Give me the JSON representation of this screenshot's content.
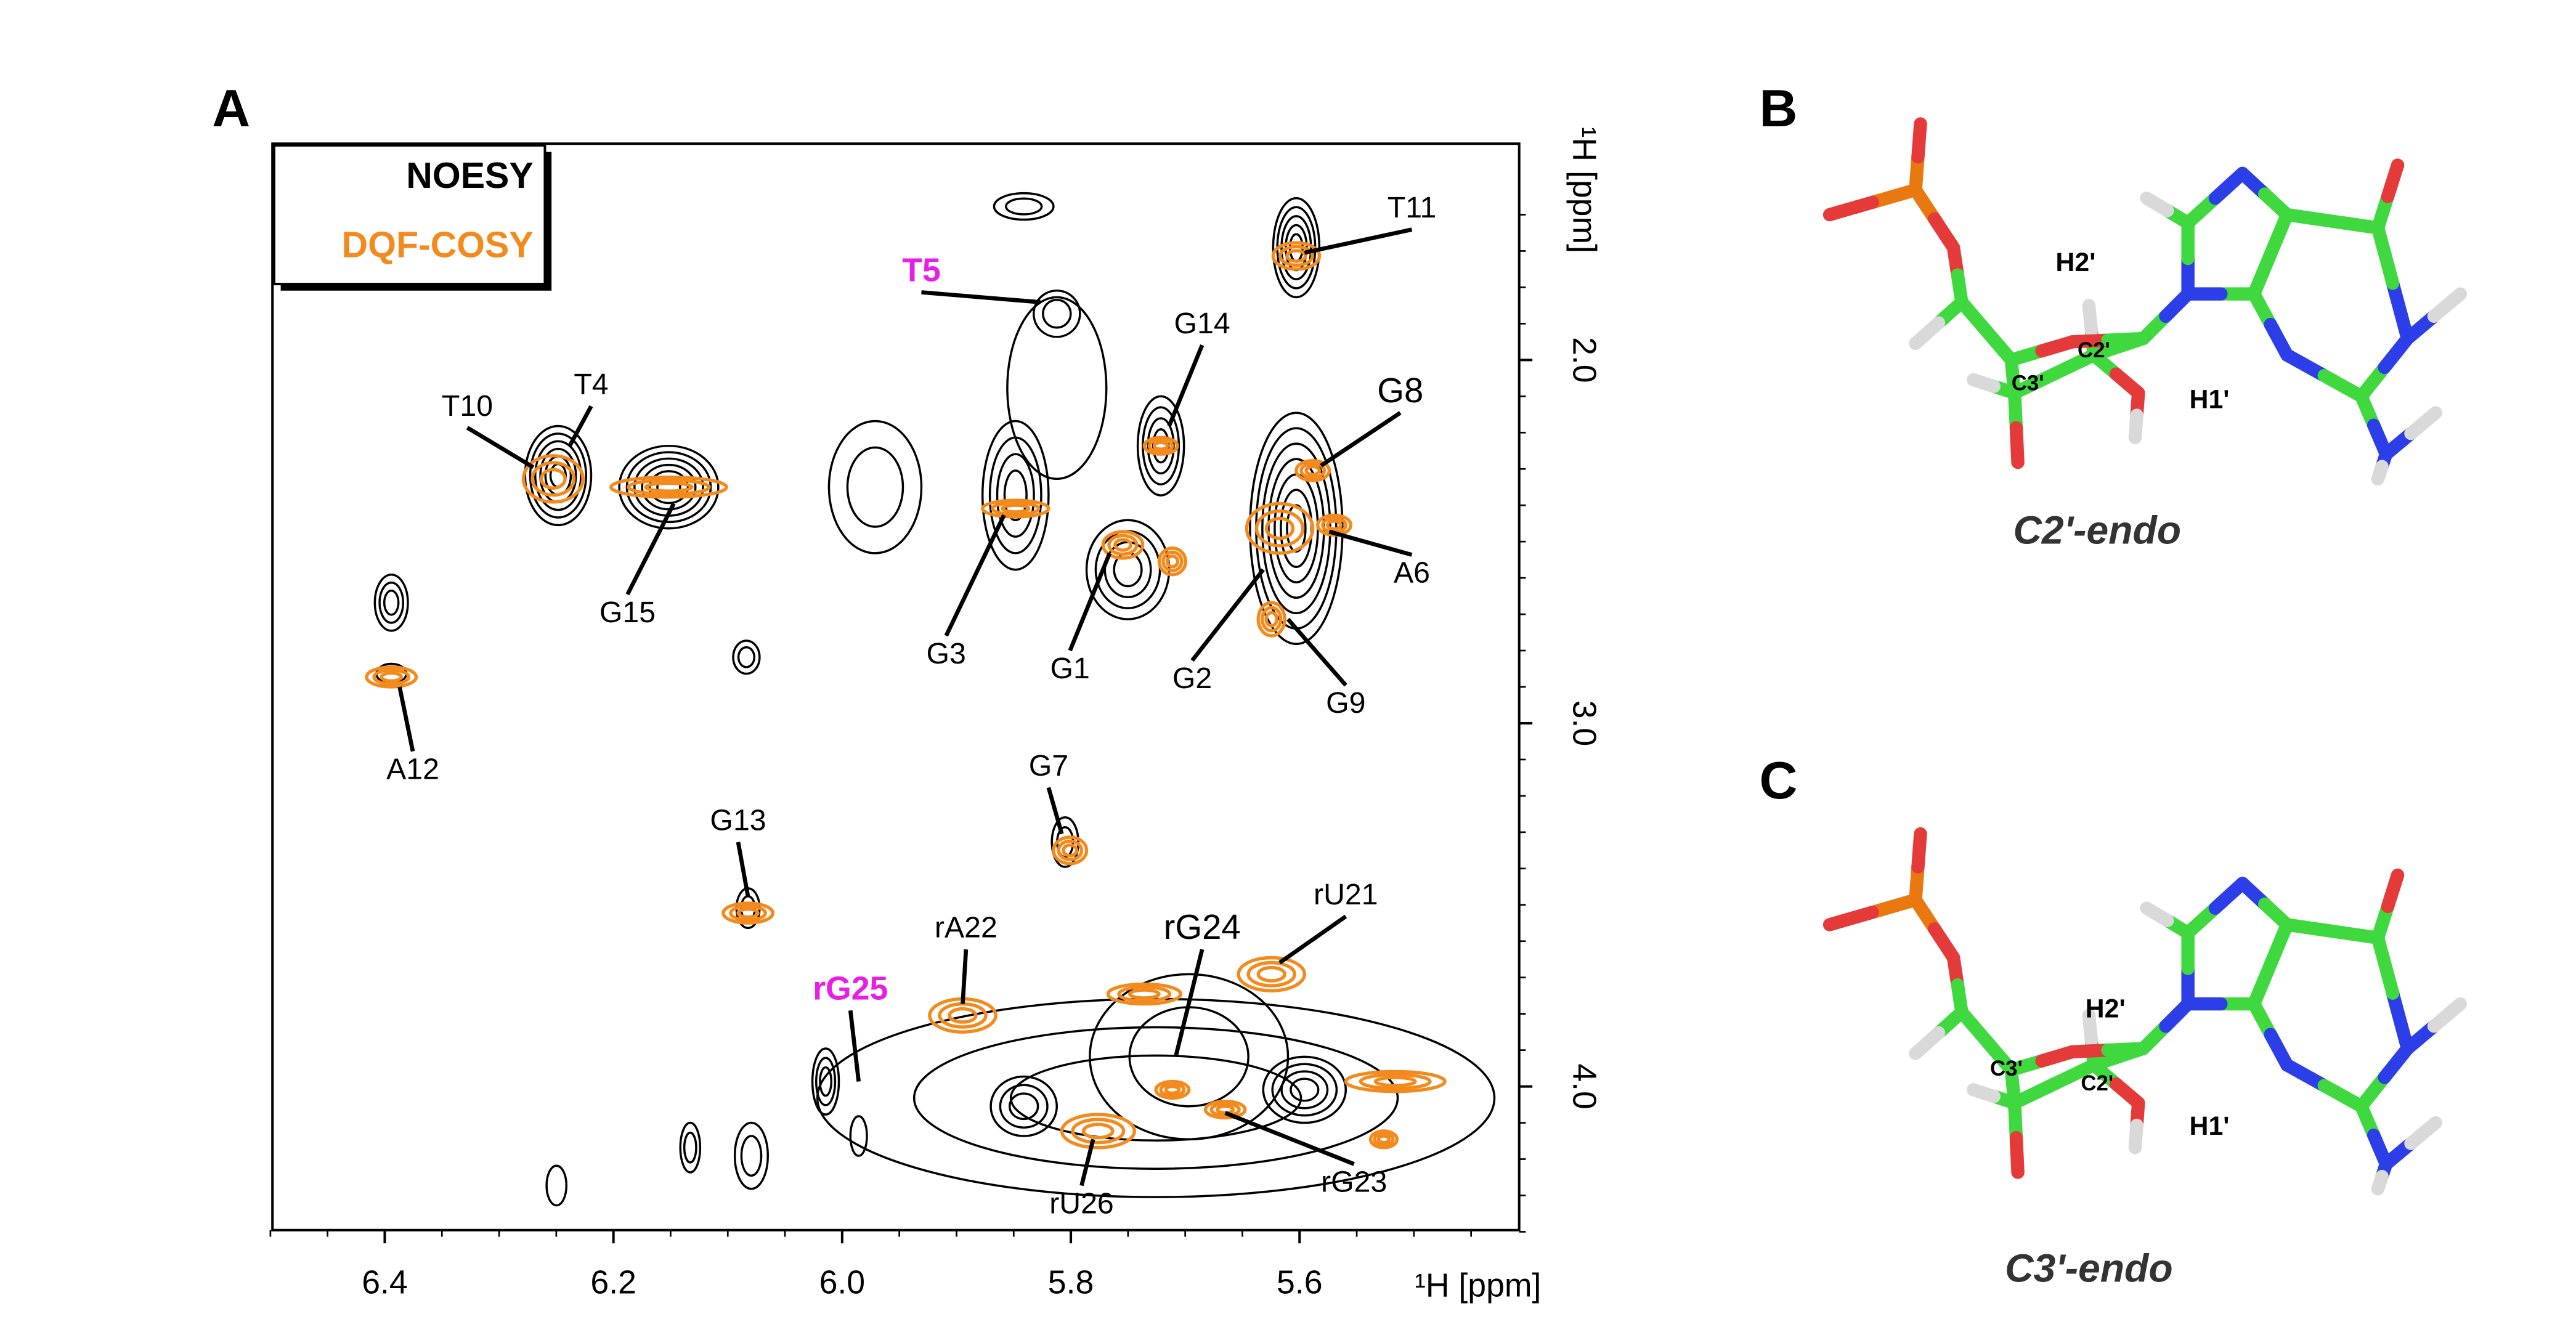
{
  "panels": [
    {
      "letter": "A",
      "legend": [
        "NOESY",
        "DQF-COSY"
      ],
      "x_axis": {
        "label": "¹H [ppm]",
        "ticks": [
          "6.4",
          "6.2",
          "6.0",
          "5.8",
          "5.6"
        ]
      },
      "y_axis": {
        "label": "¹H [ppm]",
        "ticks": [
          "2.0",
          "3.0",
          "4.0"
        ]
      },
      "peaks": [
        "T11",
        "T5",
        "G14",
        "T10",
        "T4",
        "G8",
        "G15",
        "A6",
        "G3",
        "G1",
        "G2",
        "G9",
        "A12",
        "G7",
        "G13",
        "rU21",
        "rA22",
        "rG24",
        "rG25",
        "rU26",
        "rG23"
      ]
    },
    {
      "letter": "B",
      "caption": "C2'-endo",
      "atoms": [
        "H2'",
        "C2'",
        "C3'",
        "H1'"
      ]
    },
    {
      "letter": "C",
      "caption": "C3'-endo",
      "atoms": [
        "H2'",
        "C3'",
        "C2'",
        "H1'"
      ]
    }
  ]
}
